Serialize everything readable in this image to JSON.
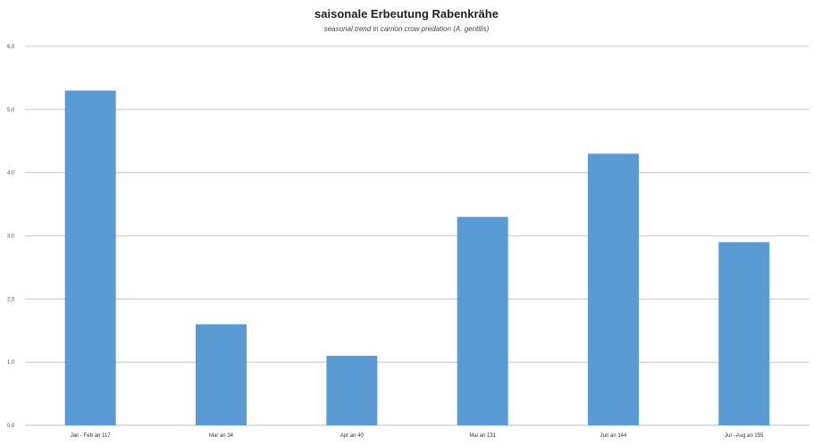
{
  "chart_data": {
    "type": "bar",
    "title": "saisonale Erbeutung Rabenkrähe",
    "subtitle": "seasonal trend in carrion crow predation (A. gentilis)",
    "categories": [
      "Jan - Feb an 117",
      "Mar an 34",
      "Apr an 40",
      "Mai an 131",
      "Jun an 144",
      "Jul - Aug an 155"
    ],
    "values": [
      5.3,
      1.6,
      1.1,
      3.3,
      4.3,
      2.9
    ],
    "y_tick_labels": [
      "0,0",
      "1,0",
      "2,0",
      "3,0",
      "4,0",
      "5,0",
      "6,0"
    ],
    "ylim": [
      0,
      6
    ],
    "xlabel": "",
    "ylabel": "",
    "grid": true,
    "bar_color": "#5b9bd5",
    "grid_color": "#bdbdbd"
  }
}
